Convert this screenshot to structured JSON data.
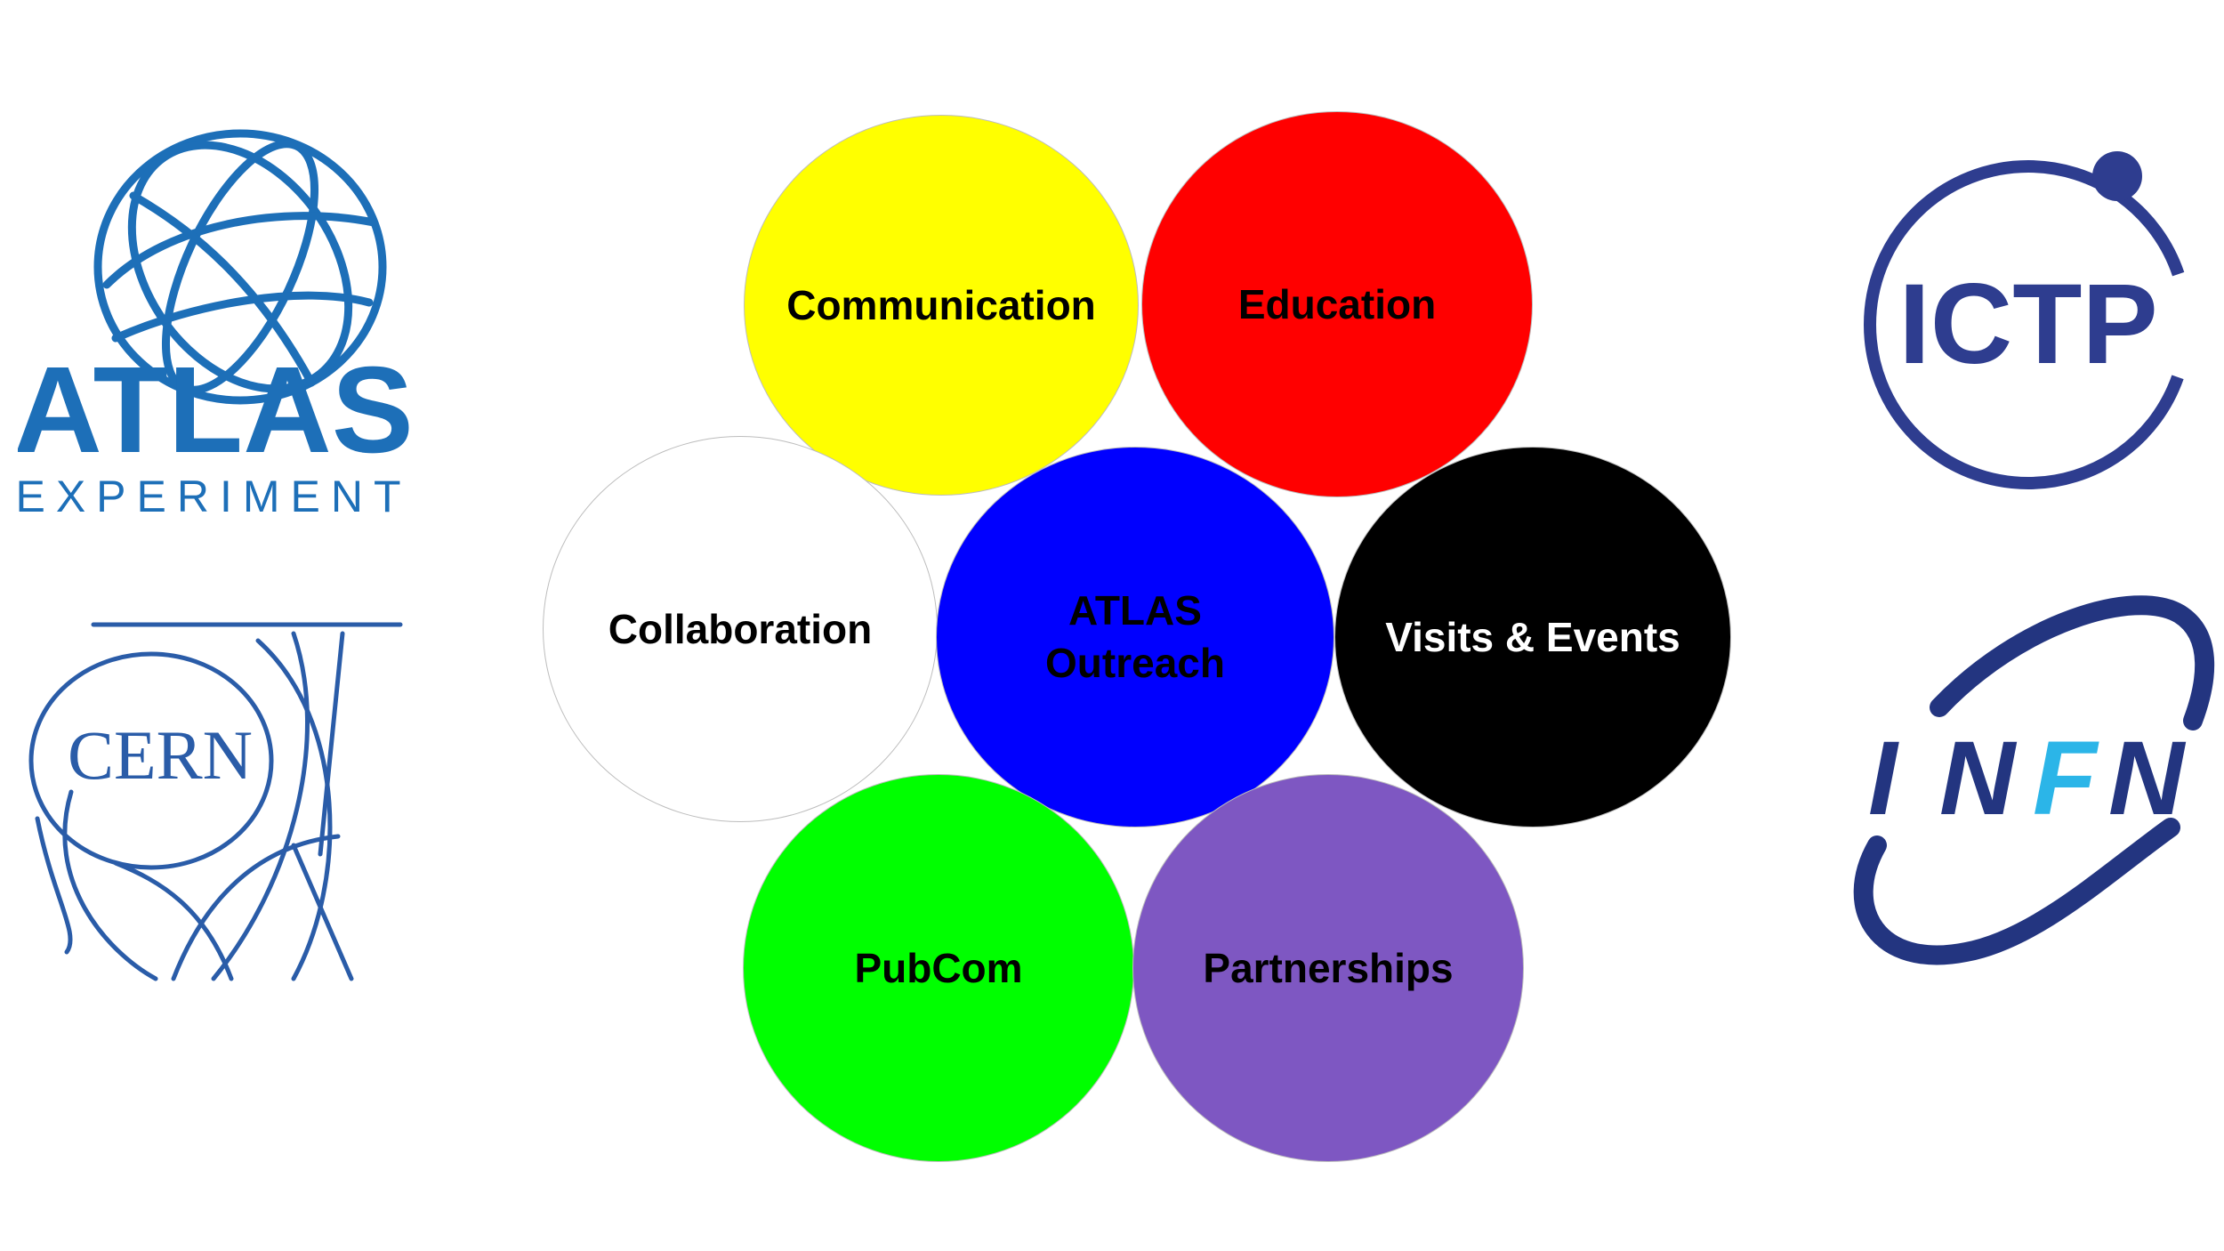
{
  "logos": {
    "atlas": {
      "name": "ATLAS",
      "subtitle": "EXPERIMENT",
      "color": "#1d6fb8"
    },
    "cern": {
      "name": "CERN",
      "color": "#2a5ca8"
    },
    "ictp": {
      "name": "ICTP",
      "color": "#2e3d8f"
    },
    "infn": {
      "letters": [
        "I",
        "N",
        "F",
        "N"
      ],
      "color": "#233580",
      "accent": "#2bb5e8"
    }
  },
  "diagram": {
    "circles": [
      {
        "id": "communication",
        "label": "Communication",
        "fill": "#ffff00",
        "text_color": "#000000"
      },
      {
        "id": "education",
        "label": "Education",
        "fill": "#ff0000",
        "text_color": "#000000"
      },
      {
        "id": "collaboration",
        "label": "Collaboration",
        "fill": "#ffffff",
        "text_color": "#000000"
      },
      {
        "id": "outreach",
        "label": "ATLAS\nOutreach",
        "fill": "#0000ff",
        "text_color": "#000000"
      },
      {
        "id": "visits",
        "label": "Visits & Events",
        "fill": "#000000",
        "text_color": "#ffffff"
      },
      {
        "id": "pubcom",
        "label": "PubCom",
        "fill": "#00ff00",
        "text_color": "#000000"
      },
      {
        "id": "partnerships",
        "label": "Partnerships",
        "fill": "#7e57c2",
        "text_color": "#000000"
      }
    ]
  }
}
